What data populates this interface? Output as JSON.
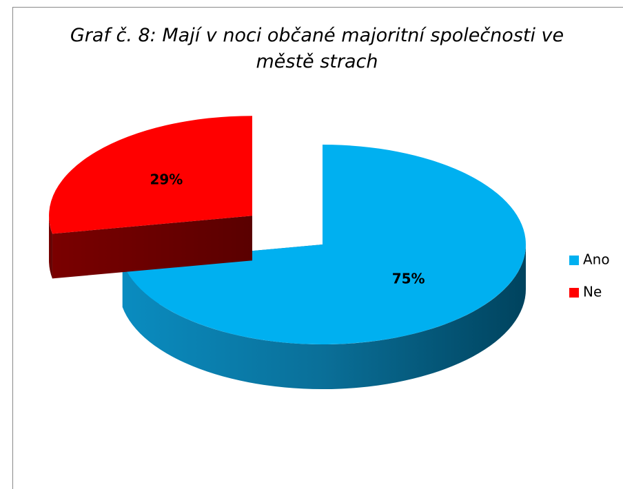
{
  "chart_data": {
    "type": "pie",
    "title": "Graf č. 8: Mají v noci občané majoritní společnosti ve městě strach",
    "categories": [
      "Ano",
      "Ne"
    ],
    "values": [
      75,
      29
    ],
    "value_labels": [
      "75%",
      "29%"
    ],
    "colors": [
      "#00b0f0",
      "#ff0000"
    ],
    "legend": "right"
  }
}
